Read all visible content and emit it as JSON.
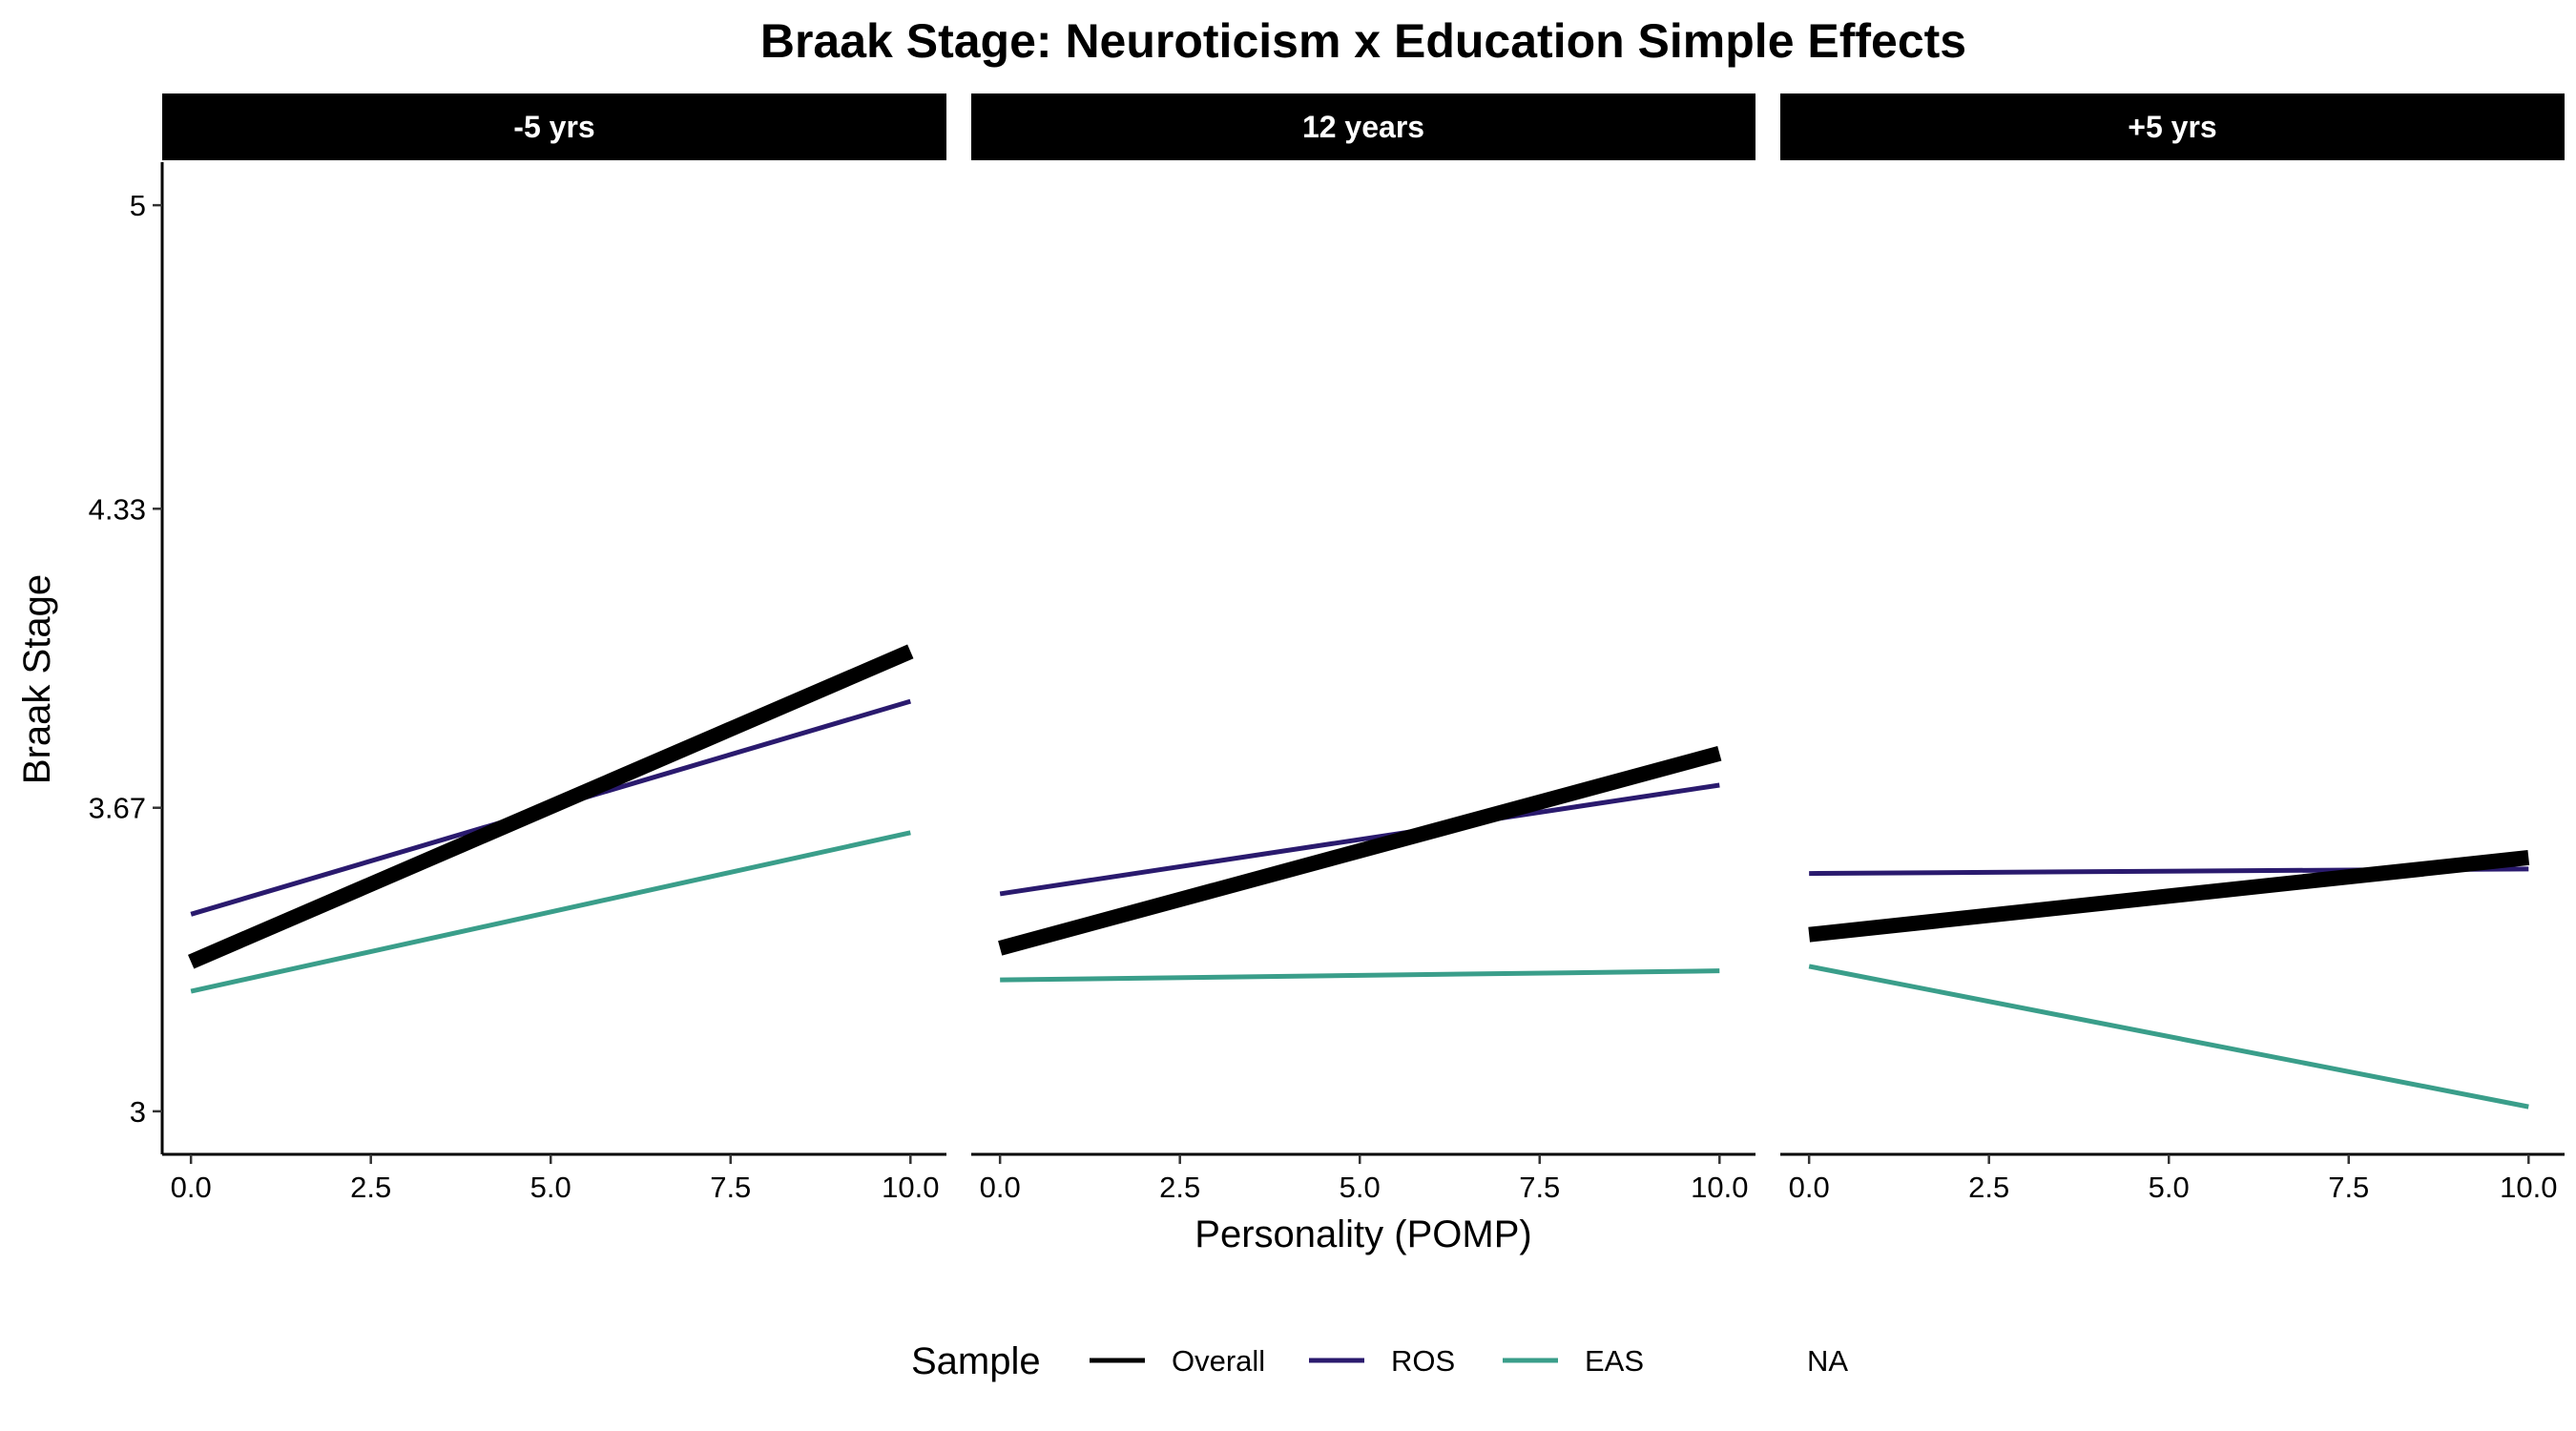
{
  "chart_data": {
    "type": "line",
    "title": "Braak Stage: Neuroticism x Education Simple Effects",
    "xlabel": "Personality (POMP)",
    "ylabel": "Braak Stage",
    "xlim": [
      -0.4,
      10.5
    ],
    "ylim": [
      2.905,
      5.095
    ],
    "xticks": [
      0,
      2.5,
      5,
      7.5,
      10
    ],
    "xtick_labels": [
      "0.0",
      "2.5",
      "5.0",
      "7.5",
      "10.0"
    ],
    "yticks": [
      3,
      3.67,
      4.33,
      5
    ],
    "ytick_labels": [
      "3",
      "3.67",
      "4.33",
      "5"
    ],
    "grid": false,
    "legend": {
      "title": "Sample",
      "position": "bottom",
      "entries": [
        {
          "label": "Overall",
          "color": "#000000"
        },
        {
          "label": "ROS",
          "color": "#2A1A6E"
        },
        {
          "label": "EAS",
          "color": "#3A9E8A"
        },
        {
          "label": "NA",
          "color": ""
        }
      ]
    },
    "panels": [
      {
        "label": "-5 yrs",
        "series": [
          {
            "name": "ROS",
            "x": [
              0,
              10
            ],
            "y": [
              3.435,
              3.905
            ]
          },
          {
            "name": "EAS",
            "x": [
              0,
              10
            ],
            "y": [
              3.265,
              3.615
            ]
          },
          {
            "name": "Overall",
            "x": [
              0,
              10
            ],
            "y": [
              3.33,
              4.015
            ]
          }
        ]
      },
      {
        "label": "12 years",
        "series": [
          {
            "name": "ROS",
            "x": [
              0,
              10
            ],
            "y": [
              3.48,
              3.72
            ]
          },
          {
            "name": "EAS",
            "x": [
              0,
              10
            ],
            "y": [
              3.29,
              3.31
            ]
          },
          {
            "name": "Overall",
            "x": [
              0,
              10
            ],
            "y": [
              3.36,
              3.79
            ]
          }
        ]
      },
      {
        "label": "+5 yrs",
        "series": [
          {
            "name": "ROS",
            "x": [
              0,
              10
            ],
            "y": [
              3.525,
              3.535
            ]
          },
          {
            "name": "EAS",
            "x": [
              0,
              10
            ],
            "y": [
              3.32,
              3.01
            ]
          },
          {
            "name": "Overall",
            "x": [
              0,
              10
            ],
            "y": [
              3.39,
              3.56
            ]
          }
        ]
      }
    ]
  }
}
